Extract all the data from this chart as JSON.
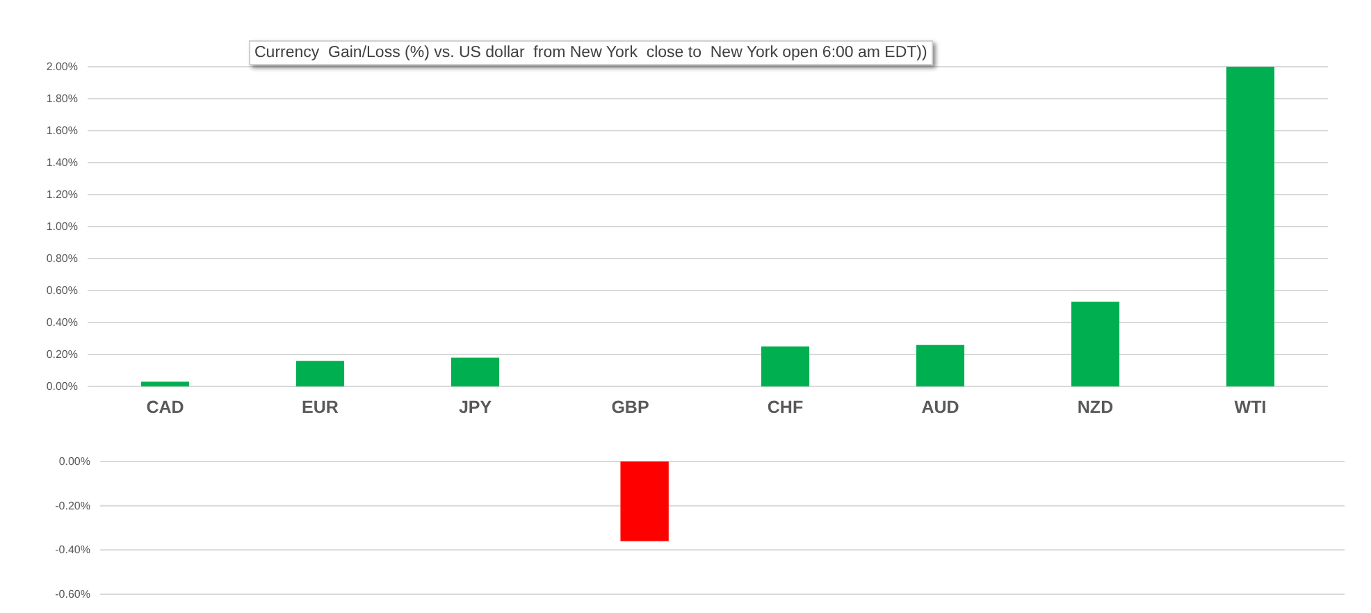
{
  "chart_data": [
    {
      "type": "bar",
      "title": "Currency  Gain/Loss (%) vs. US dollar  from New York  close to  New York open 6:00 am EDT))",
      "categories": [
        "CAD",
        "EUR",
        "JPY",
        "GBP",
        "CHF",
        "AUD",
        "NZD",
        "WTI"
      ],
      "values": [
        0.03,
        0.16,
        0.18,
        null,
        0.25,
        0.26,
        0.53,
        2.0
      ],
      "color": "#00b050",
      "ylim": [
        0,
        2.0
      ],
      "yticks": [
        {
          "value": 0,
          "label": "0.00%"
        },
        {
          "value": 0.2,
          "label": "0.20%"
        },
        {
          "value": 0.4,
          "label": "0.40%"
        },
        {
          "value": 0.6,
          "label": "0.60%"
        },
        {
          "value": 0.8,
          "label": "0.80%"
        },
        {
          "value": 1.0,
          "label": "1.00%"
        },
        {
          "value": 1.2,
          "label": "1.20%"
        },
        {
          "value": 1.4,
          "label": "1.40%"
        },
        {
          "value": 1.6,
          "label": "1.60%"
        },
        {
          "value": 1.8,
          "label": "1.80%"
        },
        {
          "value": 2.0,
          "label": "2.00%"
        }
      ],
      "grid": "y"
    },
    {
      "type": "bar",
      "categories": [
        null,
        null,
        null,
        null,
        null,
        null,
        null,
        null
      ],
      "values": [
        null,
        null,
        null,
        -0.36,
        null,
        null,
        null,
        null
      ],
      "color": "#ff0000",
      "ylim": [
        -0.6,
        0
      ],
      "yticks": [
        {
          "value": 0,
          "label": "0.00%"
        },
        {
          "value": -0.2,
          "label": "-0.20%"
        },
        {
          "value": -0.4,
          "label": "-0.40%"
        },
        {
          "value": -0.6,
          "label": "-0.60%"
        }
      ],
      "grid": "y"
    }
  ]
}
